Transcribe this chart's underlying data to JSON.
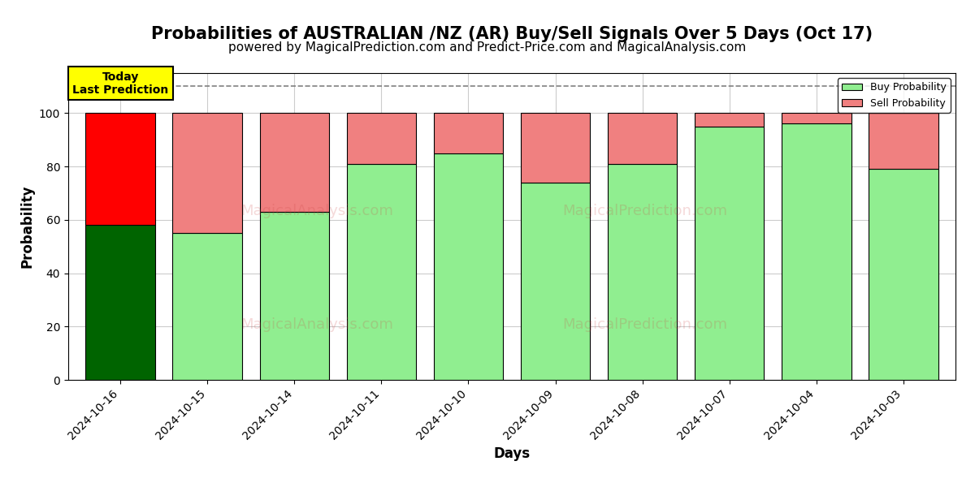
{
  "title": "Probabilities of AUSTRALIAN /NZ (AR) Buy/Sell Signals Over 5 Days (Oct 17)",
  "subtitle": "powered by MagicalPrediction.com and Predict-Price.com and MagicalAnalysis.com",
  "xlabel": "Days",
  "ylabel": "Probability",
  "dates": [
    "2024-10-16",
    "2024-10-15",
    "2024-10-14",
    "2024-10-11",
    "2024-10-10",
    "2024-10-09",
    "2024-10-08",
    "2024-10-07",
    "2024-10-04",
    "2024-10-03"
  ],
  "buy_probs": [
    58,
    55,
    63,
    81,
    85,
    74,
    81,
    95,
    96,
    79
  ],
  "sell_probs": [
    42,
    45,
    37,
    19,
    15,
    26,
    19,
    5,
    4,
    21
  ],
  "today_bar_buy_color": "#006400",
  "today_bar_sell_color": "#FF0000",
  "normal_bar_buy_color": "#90EE90",
  "normal_bar_sell_color": "#F08080",
  "today_label_bg": "#FFFF00",
  "today_label_text": "Today\nLast Prediction",
  "dashed_line_y": 110,
  "ylim": [
    0,
    115
  ],
  "yticks": [
    0,
    20,
    40,
    60,
    80,
    100
  ],
  "legend_buy": "Buy Probability",
  "legend_sell": "Sell Probability",
  "title_fontsize": 15,
  "subtitle_fontsize": 11,
  "axis_label_fontsize": 12,
  "tick_fontsize": 10,
  "bar_width": 0.8,
  "background_color": "#ffffff",
  "grid_color": "#cccccc"
}
